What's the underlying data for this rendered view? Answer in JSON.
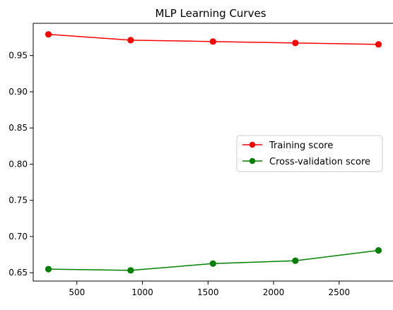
{
  "chart_data": {
    "type": "line",
    "title": "MLP Learning Curves",
    "xlabel": "",
    "ylabel": "",
    "x": [
      283,
      910,
      1538,
      2166,
      2800
    ],
    "xlim": [
      167,
      2916
    ],
    "ylim": [
      0.6385,
      0.9946
    ],
    "xticks": [
      500,
      1000,
      1500,
      2000,
      2500
    ],
    "yticks": [
      0.65,
      0.7,
      0.75,
      0.8,
      0.85,
      0.9,
      0.95
    ],
    "xtick_labels": [
      "500",
      "1000",
      "1500",
      "2000",
      "2500"
    ],
    "ytick_labels": [
      "0.65",
      "0.70",
      "0.75",
      "0.80",
      "0.85",
      "0.90",
      "0.95"
    ],
    "grid": false,
    "legend_position": "center-right",
    "series": [
      {
        "name": "Training score",
        "color": "#ff0000",
        "marker": "circle",
        "values": [
          0.9793,
          0.9713,
          0.9694,
          0.9674,
          0.9655
        ]
      },
      {
        "name": "Cross-validation score",
        "color": "#008000",
        "marker": "circle",
        "values": [
          0.655,
          0.6533,
          0.6626,
          0.6666,
          0.6808
        ]
      }
    ]
  }
}
